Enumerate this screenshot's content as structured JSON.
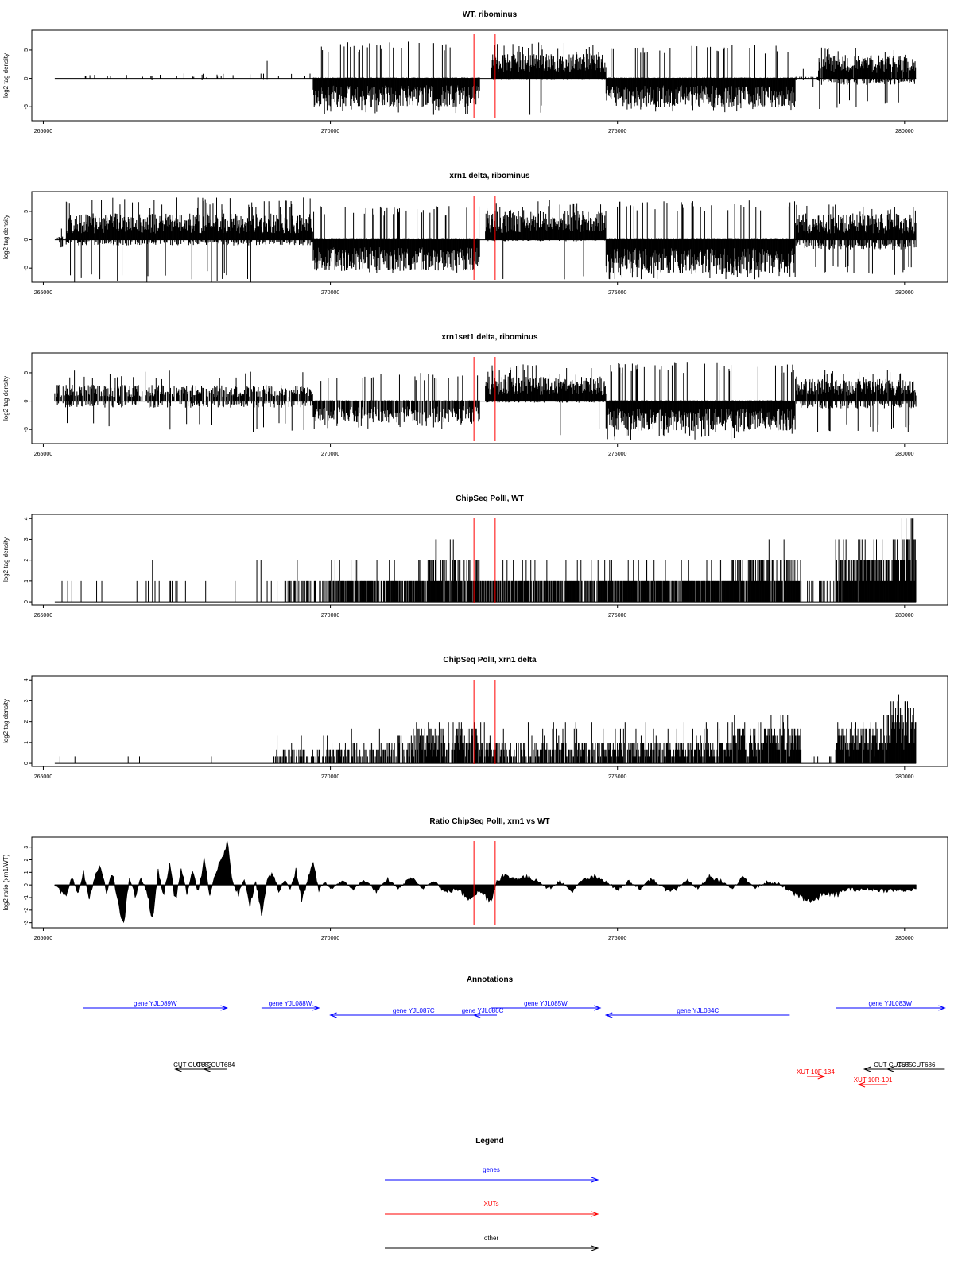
{
  "colors": {
    "gene": "#0000ff",
    "xut": "#ff0000",
    "other": "#000000",
    "marker": "#ff0000",
    "signal": "#000000"
  },
  "xaxis": {
    "range": [
      264800,
      280750
    ],
    "ticks": [
      265000,
      270000,
      275000,
      280000
    ],
    "tick_labels": [
      "265000",
      "270000",
      "275000",
      "280000"
    ]
  },
  "markers": [
    272500,
    272870
  ],
  "chart_data": [
    {
      "type": "bar",
      "title": "WT, ribominus",
      "ylabel": "log2 tag density",
      "ylim": [
        -7.5,
        8.5
      ],
      "yticks": [
        -5,
        0,
        5
      ],
      "ytick_labels": [
        "-5",
        "0",
        "5"
      ],
      "baseline_from": 265200,
      "segments": [
        {
          "x": [
            265200,
            269700
          ],
          "level": 0.6,
          "neg": 0.15,
          "density": 0.06,
          "max": 3.5
        },
        {
          "x": [
            269700,
            272600
          ],
          "level": 0.1,
          "neg": 3.5,
          "density": 1.0,
          "max": 6.5
        },
        {
          "x": [
            272800,
            274800
          ],
          "level": 3.0,
          "neg": 0.1,
          "density": 1.0,
          "max": 6.5
        },
        {
          "x": [
            274800,
            278100
          ],
          "level": 0.1,
          "neg": 3.5,
          "density": 1.0,
          "max": 6.0
        },
        {
          "x": [
            278100,
            278500
          ],
          "level": 0.2,
          "neg": 0.3,
          "density": 0.3,
          "max": 2.0
        },
        {
          "x": [
            278500,
            280200
          ],
          "level": 2.8,
          "neg": 0.8,
          "density": 0.95,
          "max": 5.5
        }
      ]
    },
    {
      "type": "bar",
      "title": "xrn1 delta, ribominus",
      "ylabel": "log2 tag density",
      "ylim": [
        -7.5,
        8.5
      ],
      "yticks": [
        -5,
        0,
        5
      ],
      "ytick_labels": [
        "-5",
        "0",
        "5"
      ],
      "baseline_from": 265200,
      "segments": [
        {
          "x": [
            265200,
            265400
          ],
          "level": 0.4,
          "neg": 1.0,
          "density": 0.4,
          "max": 2.0
        },
        {
          "x": [
            265400,
            269700
          ],
          "level": 3.2,
          "neg": 0.7,
          "density": 1.0,
          "max": 7.5
        },
        {
          "x": [
            269700,
            272600
          ],
          "level": 0.1,
          "neg": 3.8,
          "density": 1.0,
          "max": 6.0
        },
        {
          "x": [
            272700,
            274800
          ],
          "level": 3.5,
          "neg": 0.2,
          "density": 1.0,
          "max": 7.0
        },
        {
          "x": [
            274800,
            278100
          ],
          "level": 0.1,
          "neg": 4.2,
          "density": 1.0,
          "max": 7.0
        },
        {
          "x": [
            278100,
            280200
          ],
          "level": 3.2,
          "neg": 1.2,
          "density": 1.0,
          "max": 6.5
        }
      ]
    },
    {
      "type": "bar",
      "title": "xrn1set1 delta, ribominus",
      "ylabel": "log2 tag density",
      "ylim": [
        -7.5,
        8.5
      ],
      "yticks": [
        -5,
        0,
        5
      ],
      "ytick_labels": [
        "-5",
        "0",
        "5"
      ],
      "baseline_from": 265200,
      "segments": [
        {
          "x": [
            265200,
            269700
          ],
          "level": 2.0,
          "neg": 0.8,
          "density": 0.65,
          "max": 5.5
        },
        {
          "x": [
            269700,
            272600
          ],
          "level": 0.1,
          "neg": 2.6,
          "density": 0.75,
          "max": 5.0
        },
        {
          "x": [
            272700,
            274800
          ],
          "level": 3.0,
          "neg": 0.2,
          "density": 1.0,
          "max": 6.5
        },
        {
          "x": [
            274800,
            278100
          ],
          "level": 0.1,
          "neg": 3.6,
          "density": 1.0,
          "max": 7.0
        },
        {
          "x": [
            278100,
            280200
          ],
          "level": 2.7,
          "neg": 0.9,
          "density": 0.95,
          "max": 5.5
        }
      ]
    },
    {
      "type": "bar",
      "title": "ChipSeq PolII, WT",
      "ylabel": "log2 tag density",
      "ylim": [
        -0.15,
        4.2
      ],
      "yticks": [
        0,
        1,
        2,
        3,
        4
      ],
      "ytick_labels": [
        "0",
        "1",
        "2",
        "3",
        "4"
      ],
      "baseline_from": 265200,
      "step": 1,
      "segments": [
        {
          "x": [
            265200,
            269000
          ],
          "level": 0.8,
          "neg": 0,
          "density": 0.05,
          "max": 2.0
        },
        {
          "x": [
            269000,
            270000
          ],
          "level": 1.0,
          "neg": 0,
          "density": 0.3,
          "max": 2.5
        },
        {
          "x": [
            270000,
            271700
          ],
          "level": 1.0,
          "neg": 0,
          "density": 0.7,
          "max": 2.0
        },
        {
          "x": [
            271700,
            272600
          ],
          "level": 1.5,
          "neg": 0,
          "density": 0.9,
          "max": 2.8
        },
        {
          "x": [
            272600,
            274800
          ],
          "level": 1.0,
          "neg": 0,
          "density": 0.7,
          "max": 2.5
        },
        {
          "x": [
            274800,
            277000
          ],
          "level": 1.0,
          "neg": 0,
          "density": 0.85,
          "max": 2.5
        },
        {
          "x": [
            277000,
            278200
          ],
          "level": 1.5,
          "neg": 0,
          "density": 0.9,
          "max": 2.6
        },
        {
          "x": [
            278200,
            278800
          ],
          "level": 0.5,
          "neg": 0,
          "density": 0.2,
          "max": 1.5
        },
        {
          "x": [
            278800,
            279800
          ],
          "level": 1.8,
          "neg": 0,
          "density": 0.95,
          "max": 2.8
        },
        {
          "x": [
            279800,
            280200
          ],
          "level": 2.8,
          "neg": 0,
          "density": 1.0,
          "max": 3.9
        }
      ]
    },
    {
      "type": "bar",
      "title": "ChipSeq PolII, xrn1 delta",
      "ylabel": "log2 tag density",
      "ylim": [
        -0.15,
        4.2
      ],
      "yticks": [
        0,
        1,
        2,
        3,
        4
      ],
      "ytick_labels": [
        "0",
        "1",
        "2",
        "3",
        "4"
      ],
      "baseline_from": 265200,
      "step": 0.33,
      "segments": [
        {
          "x": [
            265200,
            269000
          ],
          "level": 0.33,
          "neg": 0,
          "density": 0.02,
          "max": 0.5
        },
        {
          "x": [
            269000,
            270000
          ],
          "level": 0.5,
          "neg": 0,
          "density": 0.45,
          "max": 1.3
        },
        {
          "x": [
            270000,
            271400
          ],
          "level": 0.7,
          "neg": 0,
          "density": 0.65,
          "max": 1.6
        },
        {
          "x": [
            271400,
            272600
          ],
          "level": 1.2,
          "neg": 0,
          "density": 0.85,
          "max": 2.2
        },
        {
          "x": [
            272600,
            274800
          ],
          "level": 0.8,
          "neg": 0,
          "density": 0.7,
          "max": 2.0
        },
        {
          "x": [
            274800,
            277000
          ],
          "level": 0.8,
          "neg": 0,
          "density": 0.8,
          "max": 2.0
        },
        {
          "x": [
            277000,
            278200
          ],
          "level": 1.3,
          "neg": 0,
          "density": 0.9,
          "max": 2.4
        },
        {
          "x": [
            278200,
            278800
          ],
          "level": 0.3,
          "neg": 0,
          "density": 0.15,
          "max": 1.0
        },
        {
          "x": [
            278800,
            279700
          ],
          "level": 1.3,
          "neg": 0,
          "density": 0.95,
          "max": 2.3
        },
        {
          "x": [
            279700,
            280200
          ],
          "level": 2.0,
          "neg": 0,
          "density": 1.0,
          "max": 3.2
        }
      ]
    },
    {
      "type": "area",
      "title": "Ratio ChipSeq PolII, xrn1 vs WT",
      "ylabel": "log2 ratio (xrn1/WT)",
      "ylim": [
        -3.4,
        3.8
      ],
      "yticks": [
        -3,
        -2,
        -1,
        0,
        1,
        2,
        3
      ],
      "ytick_labels": [
        "-3",
        "-2",
        "-1",
        "0",
        "1",
        "2",
        "3"
      ],
      "x_range": [
        265200,
        280200
      ],
      "points": [
        [
          265200,
          0.0
        ],
        [
          265400,
          -1.0
        ],
        [
          265500,
          0.8
        ],
        [
          265600,
          -0.8
        ],
        [
          265700,
          0.9
        ],
        [
          265800,
          -1.0
        ],
        [
          265900,
          0.6
        ],
        [
          266000,
          1.4
        ],
        [
          266100,
          -0.6
        ],
        [
          266200,
          0.9
        ],
        [
          266300,
          -1.2
        ],
        [
          266400,
          -3.2
        ],
        [
          266500,
          0.6
        ],
        [
          266600,
          -0.9
        ],
        [
          266700,
          0.5
        ],
        [
          266800,
          -0.4
        ],
        [
          266900,
          -2.8
        ],
        [
          267000,
          1.0
        ],
        [
          267100,
          -0.8
        ],
        [
          267200,
          1.7
        ],
        [
          267300,
          -1.2
        ],
        [
          267400,
          1.2
        ],
        [
          267500,
          -0.6
        ],
        [
          267600,
          0.9
        ],
        [
          267700,
          -0.5
        ],
        [
          267800,
          1.9
        ],
        [
          267900,
          -0.9
        ],
        [
          268000,
          1.0
        ],
        [
          268100,
          1.8
        ],
        [
          268200,
          3.4
        ],
        [
          268300,
          0.2
        ],
        [
          268400,
          -0.7
        ],
        [
          268500,
          0.5
        ],
        [
          268600,
          -1.5
        ],
        [
          268700,
          0.3
        ],
        [
          268800,
          -2.4
        ],
        [
          268900,
          0.4
        ],
        [
          269000,
          0.9
        ],
        [
          269100,
          -0.5
        ],
        [
          269200,
          0.4
        ],
        [
          269300,
          -0.3
        ],
        [
          269400,
          1.1
        ],
        [
          269500,
          -1.2
        ],
        [
          269600,
          0.3
        ],
        [
          269700,
          1.6
        ],
        [
          269800,
          -0.4
        ],
        [
          269900,
          0.2
        ],
        [
          270000,
          -0.3
        ],
        [
          270200,
          0.3
        ],
        [
          270400,
          -0.3
        ],
        [
          270600,
          0.4
        ],
        [
          270800,
          -0.5
        ],
        [
          271000,
          0.4
        ],
        [
          271200,
          -0.3
        ],
        [
          271400,
          0.6
        ],
        [
          271600,
          -0.3
        ],
        [
          271800,
          0.4
        ],
        [
          272000,
          -0.6
        ],
        [
          272200,
          -0.3
        ],
        [
          272400,
          -1.0
        ],
        [
          272600,
          -0.5
        ],
        [
          272800,
          -1.2
        ],
        [
          272900,
          0.3
        ],
        [
          273000,
          0.7
        ],
        [
          273200,
          0.5
        ],
        [
          273400,
          0.6
        ],
        [
          273600,
          0.4
        ],
        [
          273800,
          -0.3
        ],
        [
          274000,
          0.3
        ],
        [
          274200,
          -0.5
        ],
        [
          274400,
          0.4
        ],
        [
          274600,
          0.6
        ],
        [
          274800,
          0.3
        ],
        [
          275000,
          -0.4
        ],
        [
          275200,
          0.3
        ],
        [
          275400,
          -0.3
        ],
        [
          275600,
          0.5
        ],
        [
          275800,
          -0.3
        ],
        [
          276000,
          -0.4
        ],
        [
          276200,
          0.4
        ],
        [
          276400,
          -0.3
        ],
        [
          276600,
          0.6
        ],
        [
          276800,
          0.3
        ],
        [
          277000,
          -0.3
        ],
        [
          277200,
          0.6
        ],
        [
          277400,
          -0.2
        ],
        [
          277600,
          0.2
        ],
        [
          277800,
          0.1
        ],
        [
          278000,
          -0.5
        ],
        [
          278200,
          -0.9
        ],
        [
          278400,
          -1.3
        ],
        [
          278600,
          -0.6
        ],
        [
          278800,
          -0.8
        ],
        [
          279000,
          -0.3
        ],
        [
          279200,
          -0.4
        ],
        [
          279400,
          -0.3
        ],
        [
          279600,
          -0.4
        ],
        [
          279800,
          -0.4
        ],
        [
          280000,
          -0.4
        ],
        [
          280200,
          -0.3
        ]
      ]
    }
  ],
  "annotations": {
    "title": "Annotations",
    "genes": [
      {
        "label": "gene YJL089W",
        "x1": 265700,
        "x2": 268200,
        "dir": "right",
        "row": 0
      },
      {
        "label": "gene YJL088W",
        "x1": 268800,
        "x2": 269800,
        "dir": "right",
        "row": 0
      },
      {
        "label": "gene YJL087C",
        "x1": 270000,
        "x2": 272900,
        "dir": "left",
        "row": 1
      },
      {
        "label": "gene YJL086C",
        "x1": 272500,
        "x2": 272800,
        "dir": "left",
        "row": 1
      },
      {
        "label": "gene YJL085W",
        "x1": 272800,
        "x2": 274700,
        "dir": "right",
        "row": 0
      },
      {
        "label": "gene YJL084C",
        "x1": 274800,
        "x2": 278000,
        "dir": "left",
        "row": 1
      },
      {
        "label": "gene YJL083W",
        "x1": 278800,
        "x2": 280700,
        "dir": "right",
        "row": 0
      }
    ],
    "others": [
      {
        "label": "CUT CUT683",
        "x1": 267300,
        "x2": 267900,
        "dir": "left"
      },
      {
        "label": "CUT CUT684",
        "x1": 267800,
        "x2": 268200,
        "dir": "left"
      },
      {
        "label": "CUT CUT685",
        "x1": 279300,
        "x2": 280300,
        "dir": "left"
      },
      {
        "label": "CUT CUT686",
        "x1": 279700,
        "x2": 280700,
        "dir": "left"
      }
    ],
    "xuts": [
      {
        "label": "XUT 10F-134",
        "x1": 278300,
        "x2": 278600,
        "dir": "right",
        "row": 0
      },
      {
        "label": "XUT 10R-101",
        "x1": 279200,
        "x2": 279700,
        "dir": "left",
        "row": 1
      }
    ]
  },
  "legend": {
    "title": "Legend",
    "items": [
      {
        "label": "genes",
        "color": "#0000ff"
      },
      {
        "label": "XUTs",
        "color": "#ff0000"
      },
      {
        "label": "other",
        "color": "#000000"
      }
    ]
  }
}
